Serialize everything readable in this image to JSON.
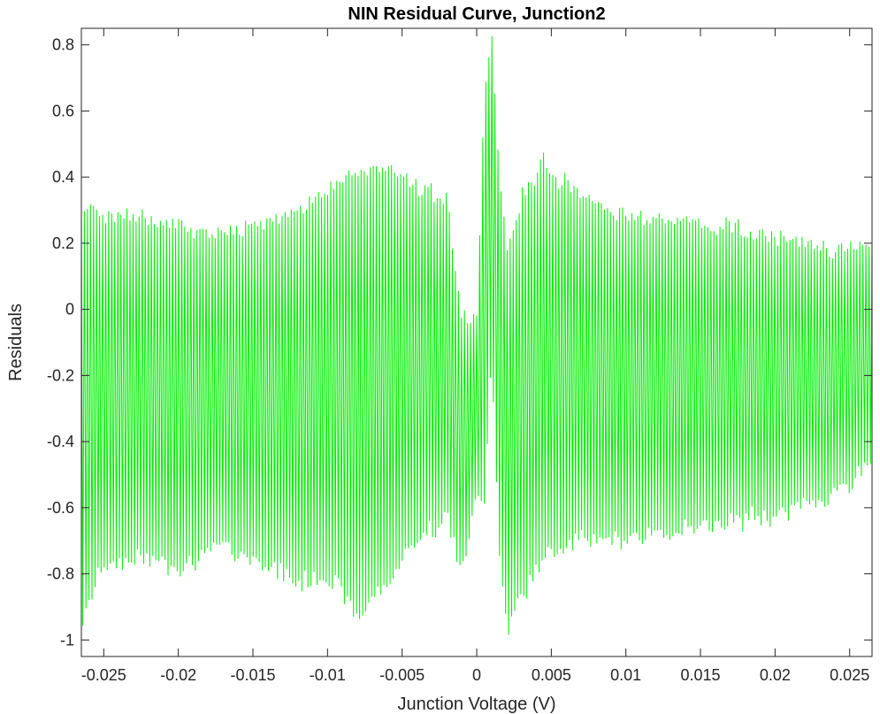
{
  "chart_data": {
    "type": "line",
    "title": "NIN Residual Curve, Junction2",
    "xlabel": "Junction Voltage (V)",
    "ylabel": "Residuals",
    "xlim": [
      -0.0265,
      0.0265
    ],
    "ylim": [
      -1.05,
      0.85
    ],
    "x_ticks": [
      -0.025,
      -0.02,
      -0.015,
      -0.01,
      -0.005,
      0,
      0.005,
      0.01,
      0.015,
      0.02,
      0.025
    ],
    "x_tick_labels": [
      "-0.025",
      "-0.02",
      "-0.015",
      "-0.01",
      "-0.005",
      "0",
      "0.005",
      "0.01",
      "0.015",
      "0.02",
      "0.025"
    ],
    "y_ticks": [
      -1,
      -0.8,
      -0.6,
      -0.4,
      -0.2,
      0,
      0.2,
      0.4,
      0.6,
      0.8
    ],
    "y_tick_labels": [
      "-1",
      "-0.8",
      "-0.6",
      "-0.4",
      "-0.2",
      "0",
      "0.2",
      "0.4",
      "0.6",
      "0.8"
    ],
    "grid": false,
    "series": [
      {
        "color": "#00ee00",
        "description": "Rapidly oscillating residual trace; approximate envelope given as upper/lower extremes vs voltage",
        "envelope_x": [
          -0.0265,
          -0.025,
          -0.022,
          -0.02,
          -0.017,
          -0.015,
          -0.012,
          -0.01,
          -0.008,
          -0.006,
          -0.004,
          -0.002,
          -0.001,
          0,
          0.0005,
          0.001,
          0.0015,
          0.002,
          0.003,
          0.0045,
          0.005,
          0.007,
          0.009,
          0.012,
          0.015,
          0.018,
          0.021,
          0.024,
          0.0265
        ],
        "upper": [
          0.32,
          0.31,
          0.3,
          0.27,
          0.25,
          0.27,
          0.32,
          0.38,
          0.44,
          0.45,
          0.4,
          0.35,
          -0.02,
          0.0,
          0.66,
          0.85,
          0.45,
          0.2,
          0.35,
          0.47,
          0.42,
          0.38,
          0.3,
          0.3,
          0.28,
          0.26,
          0.22,
          0.2,
          0.2
        ],
        "lower": [
          -0.97,
          -0.8,
          -0.78,
          -0.8,
          -0.75,
          -0.77,
          -0.85,
          -0.83,
          -0.95,
          -0.85,
          -0.72,
          -0.65,
          -0.82,
          -0.6,
          -0.6,
          -0.15,
          -0.75,
          -0.99,
          -0.9,
          -0.78,
          -0.75,
          -0.72,
          -0.72,
          -0.7,
          -0.69,
          -0.66,
          -0.64,
          -0.58,
          -0.5
        ]
      }
    ]
  }
}
